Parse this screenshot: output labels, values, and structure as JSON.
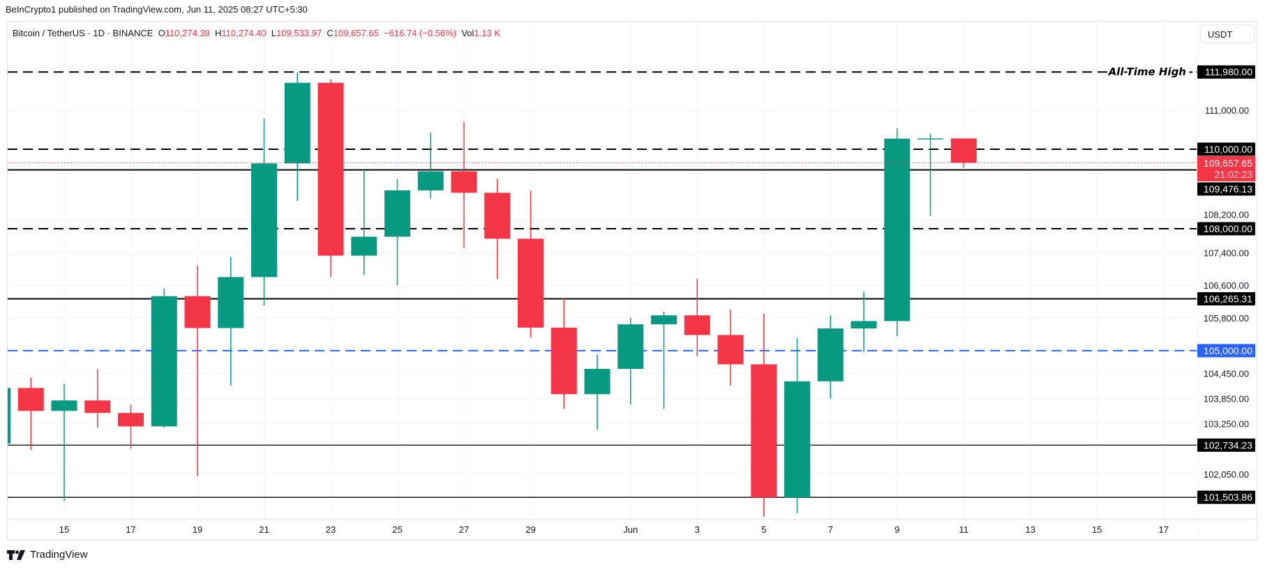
{
  "published": "BeInCrypto1 published on TradingView.com, Jun 11, 2025 08:27 UTC+5:30",
  "legend": {
    "symbol": "Bitcoin / TetherUS · 1D · BINANCE",
    "o_label": "O",
    "o": "110,274.39",
    "h_label": "H",
    "h": "110,274.40",
    "l_label": "L",
    "l": "109,533.97",
    "c_label": "C",
    "c": "109,657.65",
    "change": "−616.74 (−0.56%)",
    "vol_label": "Vol",
    "vol": "1.13 K"
  },
  "currency": "USDT",
  "footer": "TradingView",
  "colors": {
    "up": "#089981",
    "down": "#f23645",
    "blue": "#2962ff",
    "grid": "#f0f3fa"
  },
  "chart_data": {
    "type": "candlestick",
    "title": "Bitcoin / TetherUS · 1D · BINANCE",
    "yscale": "log",
    "ylim": [
      101000,
      112200
    ],
    "y_ticks": [
      "111,000.00",
      "108,200.00",
      "107,400.00",
      "106,600.00",
      "105,800.00",
      "104,450.00",
      "103,850.00",
      "103,250.00",
      "102,050.00"
    ],
    "y_tick_values": [
      111000,
      108200,
      107400,
      106600,
      105800,
      104450,
      103850,
      103250,
      102050
    ],
    "x_ticks": [
      {
        "day": 0,
        "label": "15"
      },
      {
        "day": 2,
        "label": "17"
      },
      {
        "day": 4,
        "label": "19"
      },
      {
        "day": 6,
        "label": "21"
      },
      {
        "day": 8,
        "label": "23"
      },
      {
        "day": 10,
        "label": "25"
      },
      {
        "day": 12,
        "label": "27"
      },
      {
        "day": 14,
        "label": "29"
      },
      {
        "day": 17,
        "label": "Jun"
      },
      {
        "day": 19,
        "label": "3"
      },
      {
        "day": 21,
        "label": "5"
      },
      {
        "day": 23,
        "label": "7"
      },
      {
        "day": 25,
        "label": "9"
      },
      {
        "day": 27,
        "label": "11"
      },
      {
        "day": 29,
        "label": "13"
      },
      {
        "day": 31,
        "label": "15"
      },
      {
        "day": 33,
        "label": "17"
      }
    ],
    "candles": [
      {
        "date": "May 13",
        "day": -2,
        "o": 102770,
        "h": 104400,
        "l": 102700,
        "c": 104100
      },
      {
        "date": "May 14",
        "day": -1,
        "o": 104100,
        "h": 104350,
        "l": 102620,
        "c": 103550
      },
      {
        "date": "May 15",
        "day": 0,
        "o": 103550,
        "h": 104200,
        "l": 101420,
        "c": 103800
      },
      {
        "date": "May 16",
        "day": 1,
        "o": 103800,
        "h": 104550,
        "l": 103150,
        "c": 103500
      },
      {
        "date": "May 17",
        "day": 2,
        "o": 103500,
        "h": 103700,
        "l": 102650,
        "c": 103180
      },
      {
        "date": "May 18",
        "day": 3,
        "o": 103180,
        "h": 106520,
        "l": 103150,
        "c": 106330
      },
      {
        "date": "May 19",
        "day": 4,
        "o": 106330,
        "h": 107080,
        "l": 102000,
        "c": 105550
      },
      {
        "date": "May 20",
        "day": 5,
        "o": 105550,
        "h": 107300,
        "l": 104160,
        "c": 106800
      },
      {
        "date": "May 21",
        "day": 6,
        "o": 106800,
        "h": 110780,
        "l": 106100,
        "c": 109640
      },
      {
        "date": "May 22",
        "day": 7,
        "o": 109640,
        "h": 111970,
        "l": 108700,
        "c": 111700
      },
      {
        "date": "May 23",
        "day": 8,
        "o": 111700,
        "h": 111800,
        "l": 106800,
        "c": 107330
      },
      {
        "date": "May 24",
        "day": 9,
        "o": 107330,
        "h": 109500,
        "l": 106850,
        "c": 107800
      },
      {
        "date": "May 25",
        "day": 10,
        "o": 107800,
        "h": 109240,
        "l": 106600,
        "c": 108960
      },
      {
        "date": "May 26",
        "day": 11,
        "o": 108960,
        "h": 110420,
        "l": 108760,
        "c": 109440
      },
      {
        "date": "May 27",
        "day": 12,
        "o": 109440,
        "h": 110700,
        "l": 107530,
        "c": 108900
      },
      {
        "date": "May 28",
        "day": 13,
        "o": 108900,
        "h": 109250,
        "l": 106750,
        "c": 107750
      },
      {
        "date": "May 29",
        "day": 14,
        "o": 107750,
        "h": 108950,
        "l": 105320,
        "c": 105560
      },
      {
        "date": "May 30",
        "day": 15,
        "o": 105560,
        "h": 106280,
        "l": 103600,
        "c": 103950
      },
      {
        "date": "May 31",
        "day": 16,
        "o": 103950,
        "h": 104900,
        "l": 103100,
        "c": 104560
      },
      {
        "date": "Jun 1",
        "day": 17,
        "o": 104560,
        "h": 105800,
        "l": 103700,
        "c": 105640
      },
      {
        "date": "Jun 2",
        "day": 18,
        "o": 105640,
        "h": 105950,
        "l": 103600,
        "c": 105860
      },
      {
        "date": "Jun 3",
        "day": 19,
        "o": 105860,
        "h": 106760,
        "l": 104860,
        "c": 105380
      },
      {
        "date": "Jun 4",
        "day": 20,
        "o": 105380,
        "h": 106000,
        "l": 104160,
        "c": 104670
      },
      {
        "date": "Jun 5",
        "day": 21,
        "o": 104670,
        "h": 105900,
        "l": 101050,
        "c": 101500
      },
      {
        "date": "Jun 6",
        "day": 22,
        "o": 101500,
        "h": 105300,
        "l": 101130,
        "c": 104260
      },
      {
        "date": "Jun 7",
        "day": 23,
        "o": 104260,
        "h": 105860,
        "l": 103850,
        "c": 105540
      },
      {
        "date": "Jun 8",
        "day": 24,
        "o": 105540,
        "h": 106440,
        "l": 104960,
        "c": 105720
      },
      {
        "date": "Jun 9",
        "day": 25,
        "o": 105720,
        "h": 110530,
        "l": 105350,
        "c": 110270
      },
      {
        "date": "Jun 10",
        "day": 26,
        "o": 110270,
        "h": 110400,
        "l": 108320,
        "c": 110274
      },
      {
        "date": "Jun 11",
        "day": 27,
        "o": 110274.39,
        "h": 110274.4,
        "l": 109533.97,
        "c": 109657.65
      }
    ],
    "levels": [
      {
        "price": 111980,
        "label": "111,980.00",
        "style": "dashed",
        "color": "#000000",
        "annotation": "All-Time High"
      },
      {
        "price": 110000,
        "label": "110,000.00",
        "style": "dashed",
        "color": "#000000"
      },
      {
        "price": 109476.13,
        "label": "109,476.13",
        "style": "solid",
        "color": "#000000"
      },
      {
        "price": 108000,
        "label": "108,000.00",
        "style": "dashed",
        "color": "#000000"
      },
      {
        "price": 106265.31,
        "label": "106,265.31",
        "style": "solid",
        "color": "#000000"
      },
      {
        "price": 105000,
        "label": "105,000.00",
        "style": "dashed",
        "color": "#2962ff"
      },
      {
        "price": 102734.23,
        "label": "102,734.23",
        "style": "thin",
        "color": "#000000"
      },
      {
        "price": 101503.86,
        "label": "101,503.86",
        "style": "thin",
        "color": "#000000"
      }
    ],
    "last_price": {
      "price": 109657.65,
      "label": "109,657.65",
      "countdown": "21:02:23"
    }
  }
}
